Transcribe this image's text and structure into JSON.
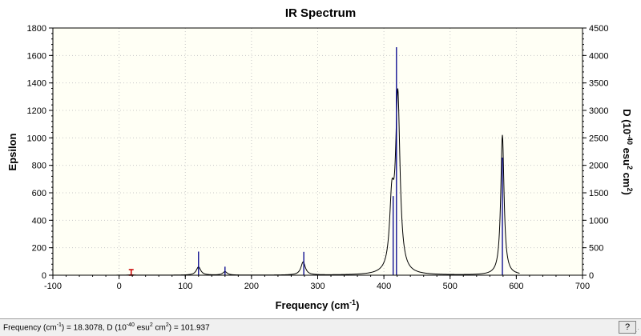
{
  "chart_data": {
    "type": "line",
    "title": "IR Spectrum",
    "xlabel": "Frequency (cm",
    "xlabel_sup": "-1",
    "xlabel_end": ")",
    "ylabel_left": "Epsilon",
    "ylabel_right_parts": [
      "D (10",
      "-40",
      " esu",
      "2",
      " cm",
      "2",
      ")"
    ],
    "xlim": [
      -100,
      700
    ],
    "ylim_left": [
      0,
      1800
    ],
    "ylim_right": [
      0,
      4500
    ],
    "x_ticks": [
      "-100",
      "0",
      "100",
      "200",
      "300",
      "400",
      "500",
      "600",
      "700"
    ],
    "x_tick_values": [
      -100,
      0,
      100,
      200,
      300,
      400,
      500,
      600,
      700
    ],
    "y_left_ticks": [
      "0",
      "200",
      "400",
      "600",
      "800",
      "1000",
      "1200",
      "1400",
      "1600",
      "1800"
    ],
    "y_left_tick_values": [
      0,
      200,
      400,
      600,
      800,
      1000,
      1200,
      1400,
      1600,
      1800
    ],
    "y_right_ticks": [
      "0",
      "500",
      "1000",
      "1500",
      "2000",
      "2500",
      "3000",
      "3500",
      "4000",
      "4500"
    ],
    "y_right_tick_values": [
      0,
      500,
      1000,
      1500,
      2000,
      2500,
      3000,
      3500,
      4000,
      4500
    ],
    "grid": true,
    "peaks": [
      {
        "freq": 18,
        "epsilon": 3,
        "width": 8
      },
      {
        "freq": 120,
        "epsilon": 60,
        "width": 8
      },
      {
        "freq": 160,
        "epsilon": 25,
        "width": 8
      },
      {
        "freq": 278,
        "epsilon": 95,
        "width": 8
      },
      {
        "freq": 412,
        "epsilon": 480,
        "width": 8
      },
      {
        "freq": 421,
        "epsilon": 1280,
        "width": 8
      },
      {
        "freq": 579,
        "epsilon": 1020,
        "width": 6
      }
    ],
    "curve_range": [
      -5,
      605
    ],
    "sticks": [
      {
        "freq": 18.3,
        "d": 102
      },
      {
        "freq": 120,
        "d": 430
      },
      {
        "freq": 160,
        "d": 155
      },
      {
        "freq": 279,
        "d": 425
      },
      {
        "freq": 414,
        "d": 1440
      },
      {
        "freq": 419,
        "d": 4150
      },
      {
        "freq": 579,
        "d": 2140
      }
    ],
    "marker": {
      "freq": 18.3,
      "d": 101.937
    }
  },
  "colors": {
    "background": "#ffffff",
    "plot_background": "#fffff5",
    "grid": "#c8c8c8",
    "curve": "#000000",
    "sticks": "#00008b",
    "marker": "#cc0000"
  },
  "status": {
    "text_parts": [
      "Frequency (cm",
      "-1",
      ") = 18.3078, D (10",
      "-40",
      " esu",
      "2",
      " cm",
      "2",
      ") = 101.937"
    ],
    "help_icon": "?"
  }
}
